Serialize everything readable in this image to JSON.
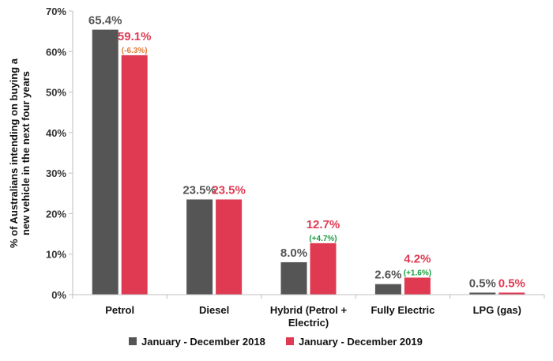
{
  "chart_data": {
    "type": "bar",
    "ylabel_lines": [
      "% of Australians intending on buying a",
      "new vehicle in the next four years"
    ],
    "ylim": [
      0,
      70
    ],
    "yticks": [
      0,
      10,
      20,
      30,
      40,
      50,
      60,
      70
    ],
    "ytick_labels": [
      "0%",
      "10%",
      "20%",
      "30%",
      "40%",
      "50%",
      "60%",
      "70%"
    ],
    "grid": false,
    "legend_position": "bottom",
    "categories": [
      [
        "Petrol"
      ],
      [
        "Diesel"
      ],
      [
        "Hybrid (Petrol +",
        "Electric)"
      ],
      [
        "Fully Electric"
      ],
      [
        "LPG (gas)"
      ]
    ],
    "series": [
      {
        "name": "January - December 2018",
        "color": "#555555",
        "values": [
          65.4,
          23.5,
          8.0,
          2.6,
          0.5
        ],
        "labels": [
          "65.4%",
          "23.5%",
          "8.0%",
          "2.6%",
          "0.5%"
        ]
      },
      {
        "name": "January - December 2019",
        "color": "#e03a52",
        "values": [
          59.1,
          23.5,
          12.7,
          4.2,
          0.5
        ],
        "labels": [
          "59.1%",
          "23.5%",
          "12.7%",
          "4.2%",
          "0.5%"
        ]
      }
    ],
    "changes": [
      {
        "category_index": 0,
        "label": "(-6.3%)",
        "color": "#e07b39"
      },
      {
        "category_index": 2,
        "label": "(+4.7%)",
        "color": "#1a9e3f"
      },
      {
        "category_index": 3,
        "label": "(+1.6%)",
        "color": "#1a9e3f"
      }
    ]
  }
}
